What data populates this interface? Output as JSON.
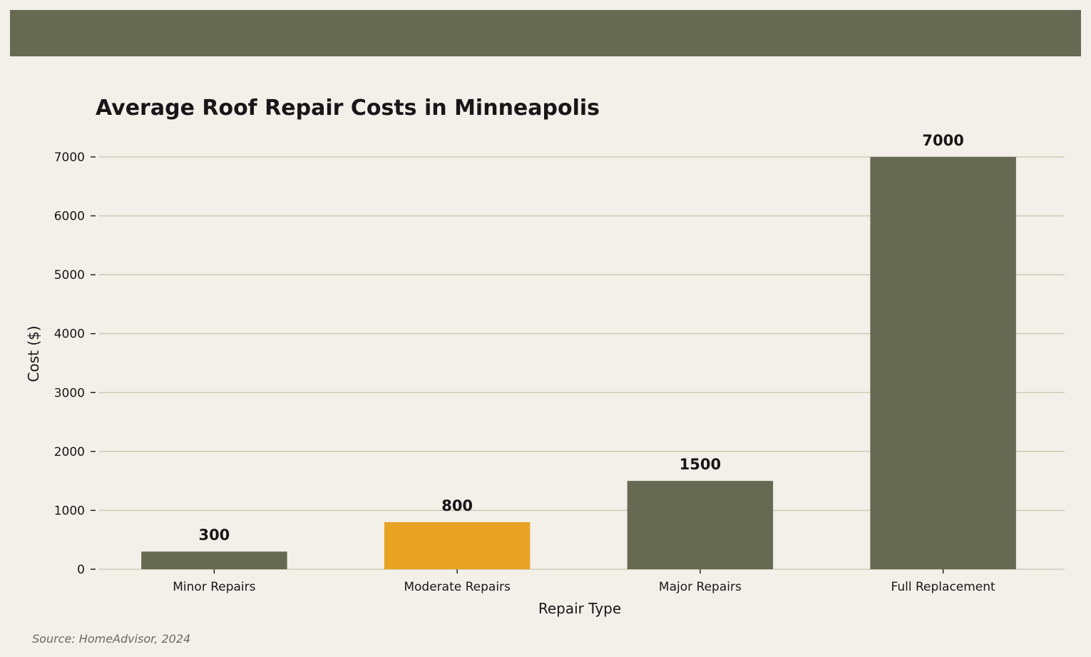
{
  "header": {
    "band_color": "#666a53"
  },
  "chart_data": {
    "type": "bar",
    "title": "Average Roof Repair Costs in Minneapolis",
    "xlabel": "Repair Type",
    "ylabel": "Cost ($)",
    "categories": [
      "Minor Repairs",
      "Moderate Repairs",
      "Major Repairs",
      "Full Replacement"
    ],
    "values": [
      300,
      800,
      1500,
      7000
    ],
    "data_labels": [
      "300",
      "800",
      "1500",
      "7000"
    ],
    "ylim": [
      0,
      7500
    ],
    "yticks": [
      0,
      1000,
      2000,
      3000,
      4000,
      5000,
      6000,
      7000
    ],
    "ytick_labels": [
      "0",
      "1000",
      "2000",
      "3000",
      "4000",
      "5000",
      "6000",
      "7000"
    ],
    "grid": "horizontal",
    "legend": "none",
    "colors": {
      "default_bar": "#666a53",
      "highlight_bar": "#e8a324",
      "highlight_index": 1,
      "gridline": "#cfccb8",
      "background": "#f2f0e9"
    }
  },
  "footer": {
    "source": "Source: HomeAdvisor, 2024"
  }
}
